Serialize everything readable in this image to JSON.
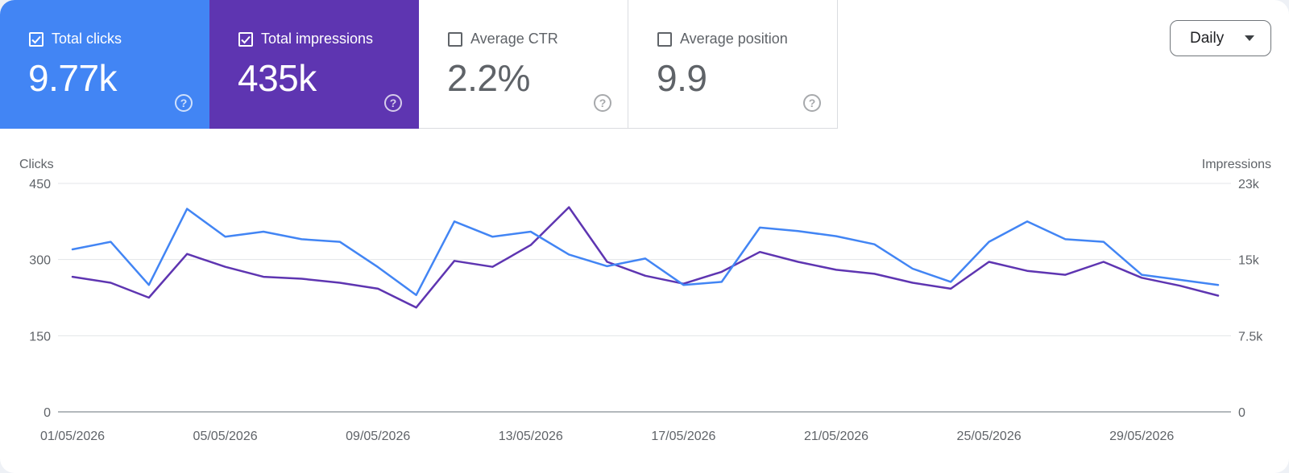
{
  "metrics": [
    {
      "label": "Total clicks",
      "value": "9.77k",
      "checked": true,
      "color": "#4285f4"
    },
    {
      "label": "Total impressions",
      "value": "435k",
      "checked": true,
      "color": "#5e35b1"
    },
    {
      "label": "Average CTR",
      "value": "2.2%",
      "checked": false
    },
    {
      "label": "Average position",
      "value": "9.9",
      "checked": false
    }
  ],
  "help_icon": "help-circle-icon",
  "period_selector": {
    "label": "Daily",
    "icon": "dropdown-caret-icon"
  },
  "chart_data": {
    "type": "line",
    "x": [
      "01/05/2026",
      "02/05/2026",
      "03/05/2026",
      "04/05/2026",
      "05/05/2026",
      "06/05/2026",
      "07/05/2026",
      "08/05/2026",
      "09/05/2026",
      "10/05/2026",
      "11/05/2026",
      "12/05/2026",
      "13/05/2026",
      "14/05/2026",
      "15/05/2026",
      "16/05/2026",
      "17/05/2026",
      "18/05/2026",
      "19/05/2026",
      "20/05/2026",
      "21/05/2026",
      "22/05/2026",
      "23/05/2026",
      "24/05/2026",
      "25/05/2026",
      "26/05/2026",
      "27/05/2026",
      "28/05/2026",
      "29/05/2026",
      "30/05/2026",
      "31/05/2026"
    ],
    "xticks": [
      "01/05/2026",
      "05/05/2026",
      "09/05/2026",
      "13/05/2026",
      "17/05/2026",
      "21/05/2026",
      "25/05/2026",
      "29/05/2026"
    ],
    "series": [
      {
        "name": "Clicks",
        "axis": "left",
        "color": "#4285f4",
        "values": [
          320,
          335,
          250,
          400,
          345,
          355,
          340,
          335,
          285,
          230,
          375,
          345,
          355,
          310,
          287,
          302,
          250,
          256,
          363,
          356,
          346,
          330,
          282,
          256,
          335,
          375,
          340,
          335,
          270,
          260,
          250
        ]
      },
      {
        "name": "Impressions",
        "axis": "right",
        "color": "#5e35b1",
        "values": [
          13600,
          13000,
          11500,
          15900,
          14600,
          13600,
          13400,
          13000,
          12400,
          10500,
          15200,
          14600,
          16800,
          20600,
          15100,
          13700,
          12900,
          14100,
          16100,
          15100,
          14300,
          13900,
          13000,
          12400,
          15100,
          14200,
          13800,
          15100,
          13500,
          12700,
          11700
        ]
      }
    ],
    "ylabel": "Clicks",
    "ylabel_right": "Impressions",
    "yticks_left": [
      "0",
      "150",
      "300",
      "450"
    ],
    "yticks_right": [
      "0",
      "7.5k",
      "15k",
      "23k"
    ],
    "ylim": [
      0,
      450
    ],
    "ylim_right": [
      0,
      23000
    ],
    "grid": true
  }
}
